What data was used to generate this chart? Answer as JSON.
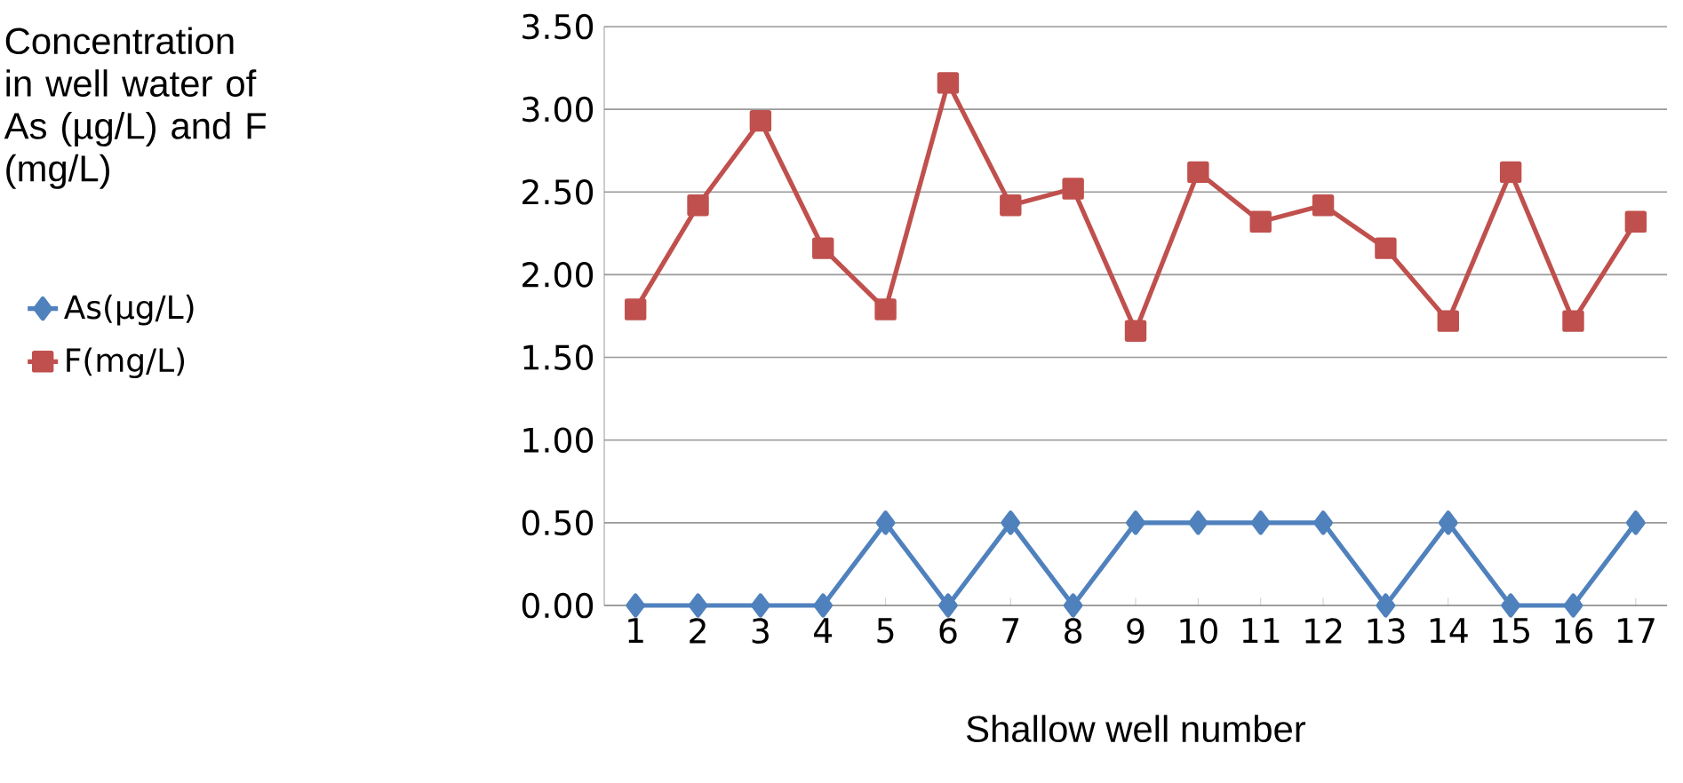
{
  "chart_data": {
    "type": "line",
    "annotations": [
      "Concentration in well water of As (µg/L) and F (mg/L)"
    ],
    "xlabel": "Shallow well number",
    "categories": [
      "1",
      "2",
      "3",
      "4",
      "5",
      "6",
      "7",
      "8",
      "9",
      "10",
      "11",
      "12",
      "13",
      "14",
      "15",
      "16",
      "17"
    ],
    "series": [
      {
        "name": "As(µg/L)",
        "color": "#4f81bd",
        "marker": "diamond",
        "values": [
          0,
          0,
          0,
          0,
          0.5,
          0,
          0.5,
          0,
          0.5,
          0.5,
          0.5,
          0.5,
          0,
          0.5,
          0,
          0,
          0.5
        ]
      },
      {
        "name": "F(mg/L)",
        "color": "#c0504d",
        "marker": "square",
        "values": [
          1.79,
          2.42,
          2.93,
          2.16,
          1.79,
          3.16,
          2.42,
          2.52,
          1.66,
          2.62,
          2.32,
          2.42,
          2.16,
          1.72,
          2.62,
          1.72,
          2.32
        ]
      }
    ],
    "ylim": [
      0,
      3.5
    ],
    "yticks": [
      {
        "value": 0,
        "label": "0.00"
      },
      {
        "value": 0.5,
        "label": "0.50"
      },
      {
        "value": 1,
        "label": "1.00"
      },
      {
        "value": 1.5,
        "label": "1.50"
      },
      {
        "value": 2,
        "label": "2.00"
      },
      {
        "value": 2.5,
        "label": "2.50"
      },
      {
        "value": 3,
        "label": "3.00"
      },
      {
        "value": 3.5,
        "label": "3.50"
      }
    ],
    "grid": "y",
    "legend": "left"
  }
}
